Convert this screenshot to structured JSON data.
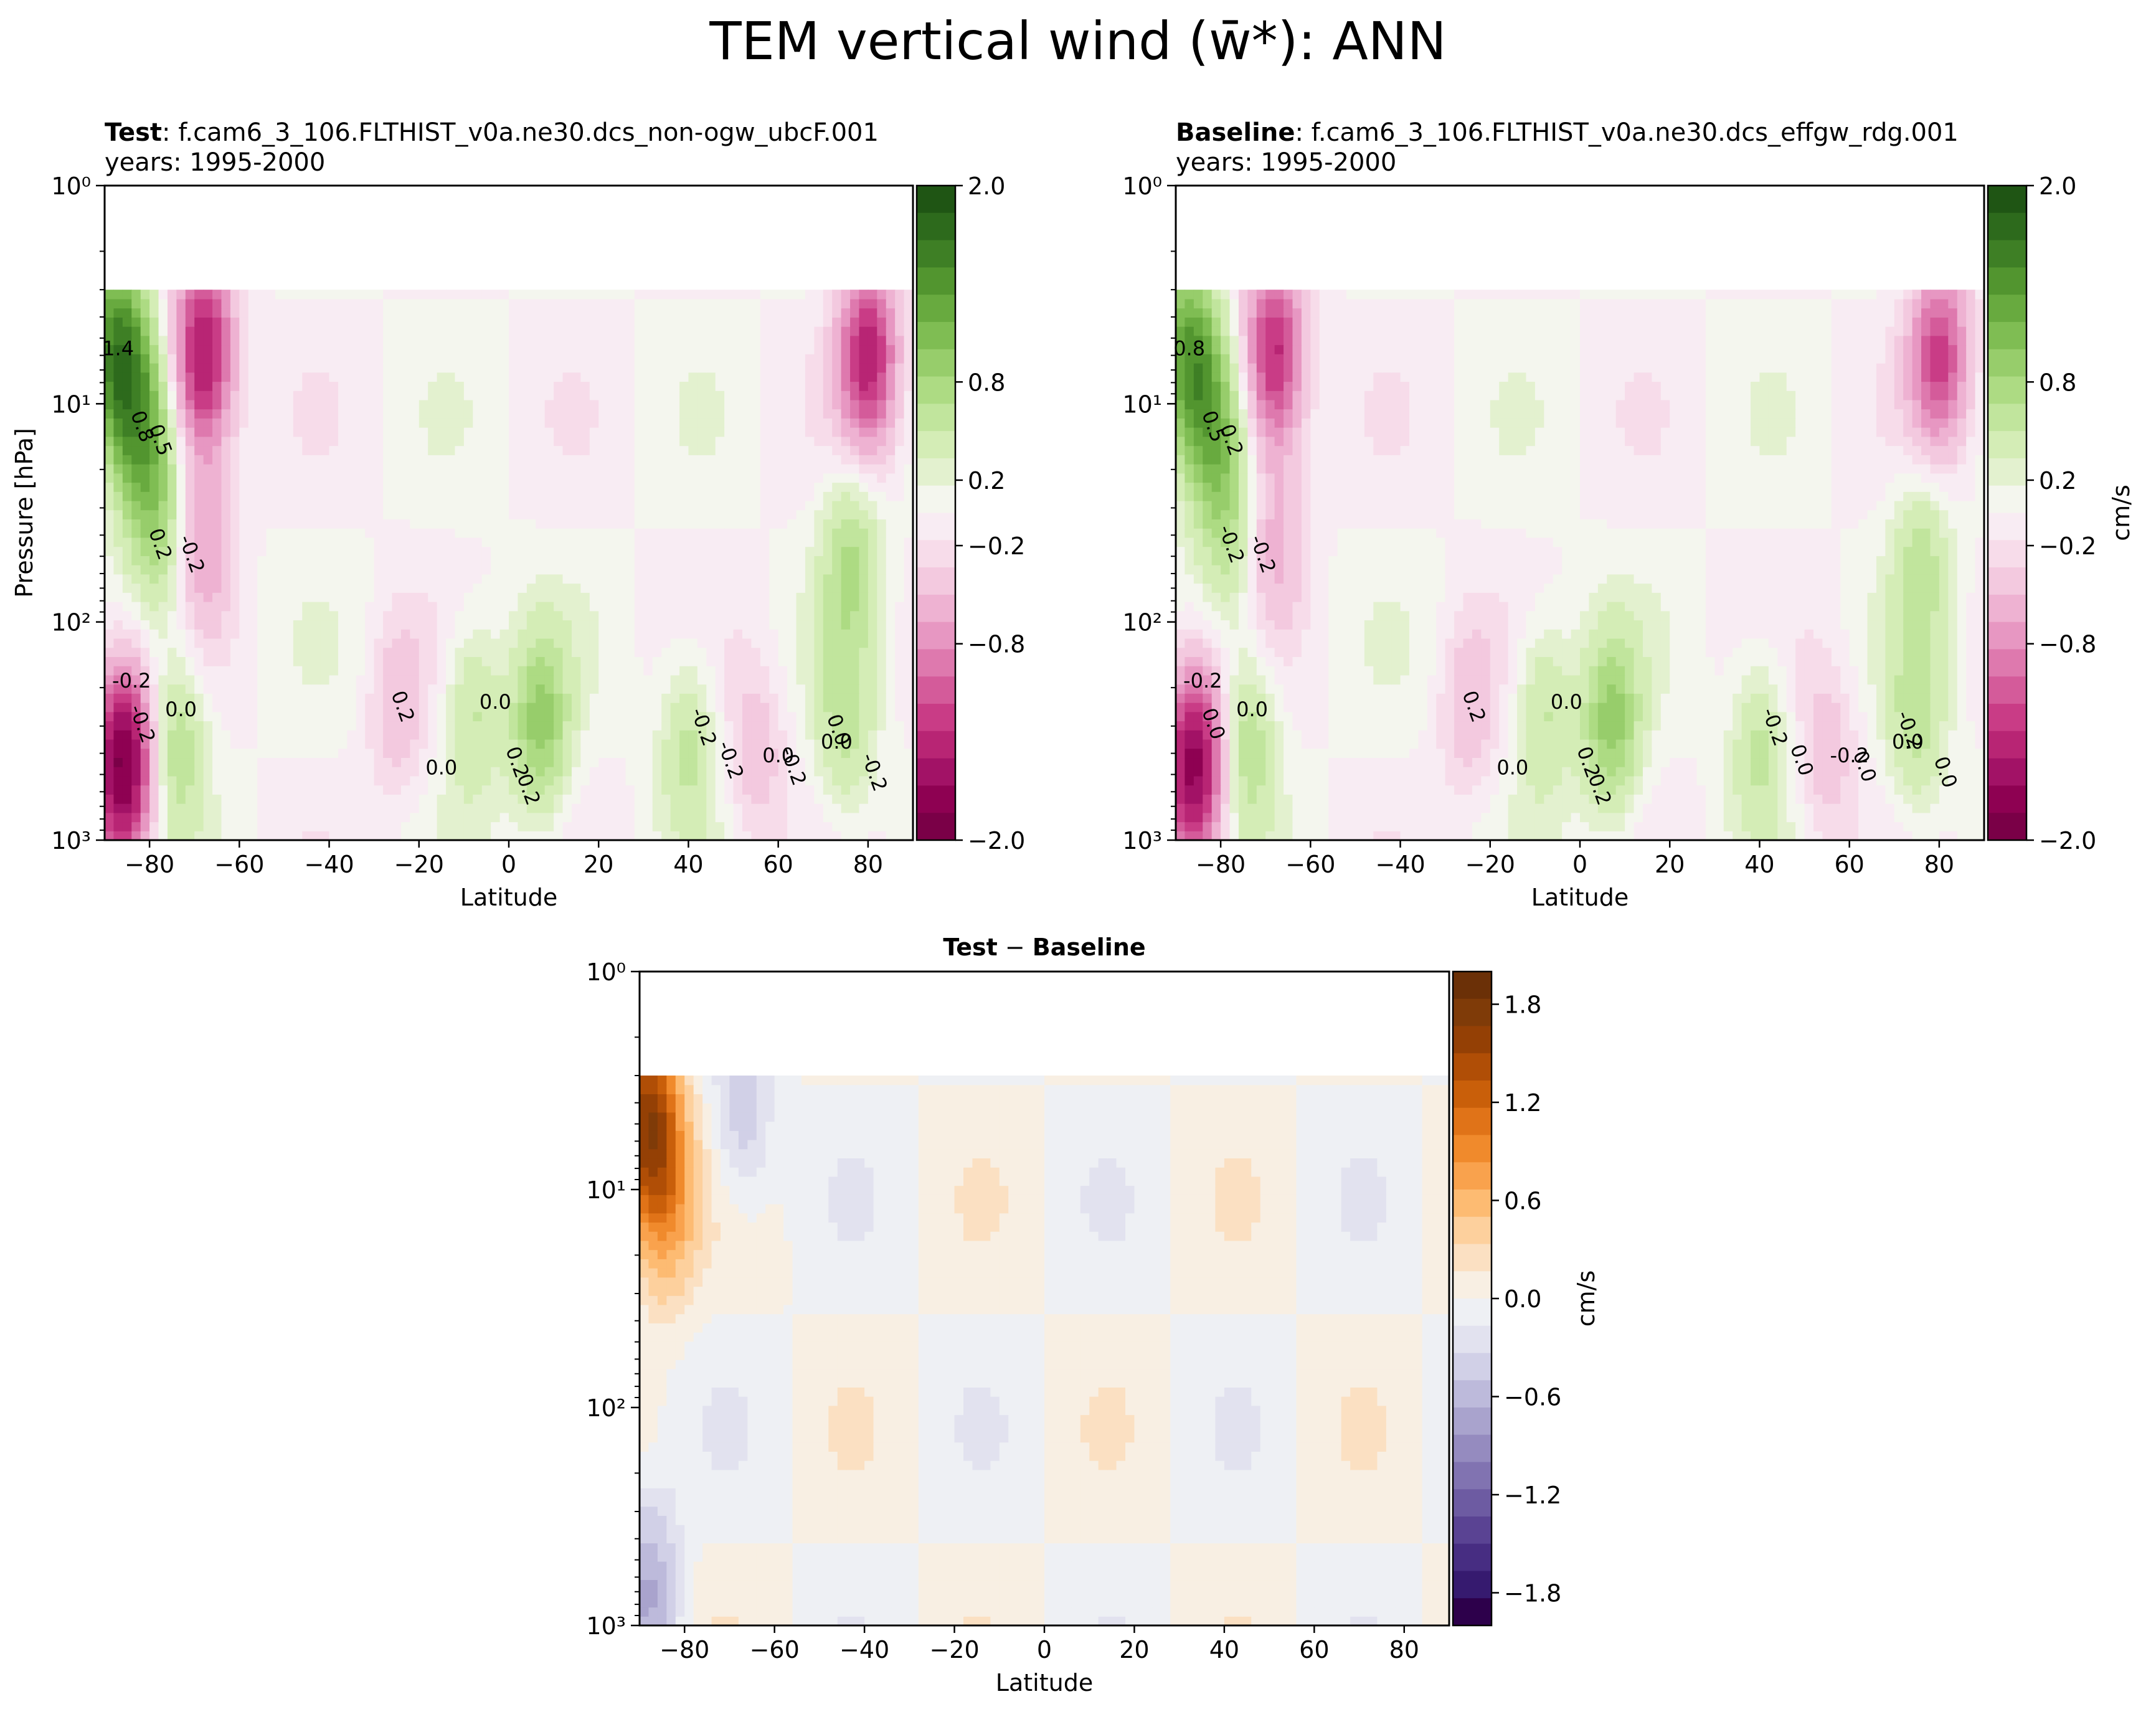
{
  "figure": {
    "suptitle": "TEM vertical wind (w̄*): ANN"
  },
  "colors": {
    "pos_cmap": [
      "#f4f6ee",
      "#e3f1cf",
      "#d4edb6",
      "#c1e59d",
      "#addb83",
      "#97cd6b",
      "#7fbd53",
      "#68aa3f",
      "#52952f",
      "#3e7f25",
      "#2d6a1c",
      "#1f5514"
    ],
    "neg_cmap": [
      "#f8ecf3",
      "#f7dcea",
      "#f3c9df",
      "#eeb2d2",
      "#e797c2",
      "#de79ae",
      "#d45b9a",
      "#c93c86",
      "#b82574",
      "#a21266",
      "#8e0152",
      "#7a0047"
    ],
    "diff_pos_cmap": [
      "#f8efe3",
      "#fbe0c2",
      "#fdd09d",
      "#fdbb72",
      "#f9a24d",
      "#f08a2c",
      "#e07318",
      "#c95f0a",
      "#b04e06",
      "#944005",
      "#7f3b08",
      "#6b3007"
    ],
    "diff_neg_cmap": [
      "#eef0f4",
      "#e2e2ef",
      "#d1d0e7",
      "#bdbadb",
      "#a9a3cd",
      "#958bbf",
      "#8173b1",
      "#6d5ba2",
      "#5a4393",
      "#472d82",
      "#361a6f",
      "#2d004b"
    ]
  },
  "panels": [
    {
      "title_bold": "Test",
      "title_case": ": f.cam6_3_106.FLTHIST_v0a.ne30.dcs_non-ogw_ubcF.001",
      "title_years": "years: 1995-2000",
      "xlabel": "Latitude",
      "ylabel": "Pressure [hPa]",
      "colorbar_label": "",
      "contour_labels": [
        "1.4",
        "0.8",
        "0.5",
        "-0.2",
        "0.2",
        "-0.2",
        "0.0",
        "-0.2",
        "0.2",
        "0.0",
        "0.2",
        "0.2",
        "0.0",
        "-0.2",
        "-0.2",
        "0.0",
        "-0.2",
        "0.0",
        "0.0",
        "-0.2"
      ]
    },
    {
      "title_bold": "Baseline",
      "title_case": ": f.cam6_3_106.FLTHIST_v0a.ne30.dcs_effgw_rdg.001",
      "title_years": "years: 1995-2000",
      "xlabel": "Latitude",
      "ylabel": "",
      "colorbar_label": "cm/s",
      "contour_labels": [
        "0.8",
        "0.5",
        "0.2",
        "-0.2",
        "-0.2",
        "0.0",
        "0.0",
        "-0.2",
        "0.2",
        "0.0",
        "0.2",
        "0.2",
        "0.0",
        "-0.2",
        "0.0",
        "-0.2",
        "0.0",
        "-0.2",
        "0.0",
        "0.0"
      ]
    },
    {
      "title_bold": "Test",
      "title_sep": " − ",
      "title_bold2": "Baseline",
      "xlabel": "Latitude",
      "ylabel": "",
      "colorbar_label": "cm/s"
    }
  ],
  "chart_data": [
    {
      "type": "heatmap",
      "title": "Test: f.cam6_3_106.FLTHIST_v0a.ne30.dcs_non-ogw_ubcF.001 years: 1995-2000",
      "xlabel": "Latitude",
      "ylabel": "Pressure [hPa]",
      "xlim": [
        -90,
        90
      ],
      "ylim": [
        1000,
        1
      ],
      "yscale": "log",
      "xticks": [
        -80,
        -60,
        -40,
        -20,
        0,
        20,
        40,
        60,
        80
      ],
      "yticks": [
        1000,
        100,
        10,
        1
      ],
      "ytick_labels": [
        "10³",
        "10²",
        "10¹",
        "10⁰"
      ],
      "data_top_hPa": 3,
      "colorbar": {
        "ticks": [
          2.0,
          0.8,
          0.2,
          -0.2,
          -0.8,
          -2.0
        ],
        "tick_labels": [
          "2.0",
          "0.8",
          "0.2",
          "−0.2",
          "−0.8",
          "−2.0"
        ],
        "range": [
          -2.0,
          2.0
        ]
      },
      "features": [
        {
          "lat": -87,
          "p": 6,
          "w": 1.4
        },
        {
          "lat": -82,
          "p": 14,
          "w": 0.8
        },
        {
          "lat": -78,
          "p": 40,
          "w": 0.5
        },
        {
          "lat": -68,
          "p": 6,
          "w": -1.4
        },
        {
          "lat": -68,
          "p": 40,
          "w": -0.5
        },
        {
          "lat": -86,
          "p": 450,
          "w": -1.8
        },
        {
          "lat": -74,
          "p": 350,
          "w": 0.5
        },
        {
          "lat": 80,
          "p": 6,
          "w": -1.2
        },
        {
          "lat": 76,
          "p": 50,
          "w": 0.5
        },
        {
          "lat": 7,
          "p": 300,
          "w": 0.7
        },
        {
          "lat": -8,
          "p": 250,
          "w": 0.4
        },
        {
          "lat": 40,
          "p": 350,
          "w": 0.4
        },
        {
          "lat": 75,
          "p": 300,
          "w": 0.4
        },
        {
          "lat": -25,
          "p": 250,
          "w": -0.3
        },
        {
          "lat": 55,
          "p": 400,
          "w": -0.3
        }
      ]
    },
    {
      "type": "heatmap",
      "title": "Baseline: f.cam6_3_106.FLTHIST_v0a.ne30.dcs_effgw_rdg.001 years: 1995-2000",
      "xlabel": "Latitude",
      "ylabel": "",
      "xlim": [
        -90,
        90
      ],
      "ylim": [
        1000,
        1
      ],
      "yscale": "log",
      "xticks": [
        -80,
        -60,
        -40,
        -20,
        0,
        20,
        40,
        60,
        80
      ],
      "yticks": [
        1000,
        100,
        10,
        1
      ],
      "ytick_labels": [
        "10³",
        "10²",
        "10¹",
        "10⁰"
      ],
      "data_top_hPa": 3,
      "colorbar": {
        "ticks": [
          2.0,
          0.8,
          0.2,
          -0.2,
          -0.8,
          -2.0
        ],
        "tick_labels": [
          "2.0",
          "0.8",
          "0.2",
          "−0.2",
          "−0.8",
          "−2.0"
        ],
        "range": [
          -2.0,
          2.0
        ],
        "label": "cm/s"
      },
      "features": [
        {
          "lat": -87,
          "p": 6,
          "w": 1.1
        },
        {
          "lat": -82,
          "p": 14,
          "w": 0.7
        },
        {
          "lat": -78,
          "p": 40,
          "w": 0.4
        },
        {
          "lat": -68,
          "p": 6,
          "w": -1.2
        },
        {
          "lat": -68,
          "p": 40,
          "w": -0.4
        },
        {
          "lat": -86,
          "p": 450,
          "w": -1.6
        },
        {
          "lat": -74,
          "p": 350,
          "w": 0.5
        },
        {
          "lat": 80,
          "p": 6,
          "w": -1.0
        },
        {
          "lat": 76,
          "p": 50,
          "w": 0.4
        },
        {
          "lat": 7,
          "p": 300,
          "w": 0.7
        },
        {
          "lat": -8,
          "p": 250,
          "w": 0.4
        },
        {
          "lat": 40,
          "p": 350,
          "w": 0.4
        },
        {
          "lat": 75,
          "p": 300,
          "w": 0.4
        },
        {
          "lat": -25,
          "p": 250,
          "w": -0.3
        },
        {
          "lat": 55,
          "p": 400,
          "w": -0.3
        }
      ]
    },
    {
      "type": "heatmap",
      "title": "Test − Baseline",
      "xlabel": "Latitude",
      "ylabel": "",
      "xlim": [
        -90,
        90
      ],
      "ylim": [
        1000,
        1
      ],
      "yscale": "log",
      "xticks": [
        -80,
        -60,
        -40,
        -20,
        0,
        20,
        40,
        60,
        80
      ],
      "yticks": [
        1000,
        100,
        10,
        1
      ],
      "ytick_labels": [
        "10³",
        "10²",
        "10¹",
        "10⁰"
      ],
      "data_top_hPa": 3,
      "colorbar": {
        "ticks": [
          1.8,
          1.2,
          0.6,
          0.0,
          -0.6,
          -1.2,
          -1.8
        ],
        "tick_labels": [
          "1.8",
          "1.2",
          "0.6",
          "0.0",
          "−0.6",
          "−1.2",
          "−1.8"
        ],
        "range": [
          -2.0,
          2.0
        ],
        "label": "cm/s"
      },
      "features": [
        {
          "lat": -88,
          "p": 5,
          "w": 1.4
        },
        {
          "lat": -84,
          "p": 12,
          "w": 0.5
        },
        {
          "lat": -67,
          "p": 5,
          "w": -0.3
        },
        {
          "lat": -88,
          "p": 700,
          "w": -0.5
        }
      ]
    }
  ]
}
